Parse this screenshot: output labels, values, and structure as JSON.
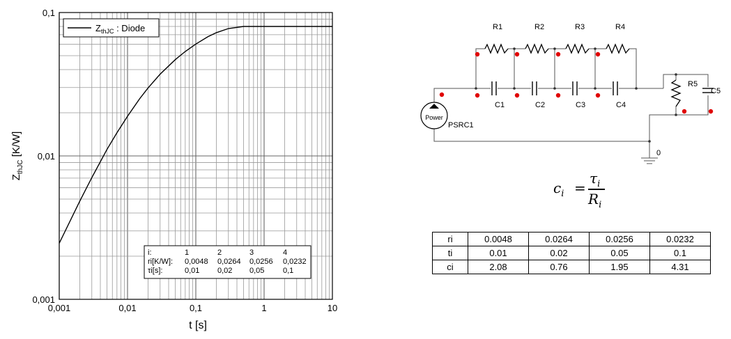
{
  "chart_data": {
    "type": "line",
    "xscale": "log",
    "yscale": "log",
    "xlim": [
      0.001,
      10
    ],
    "ylim": [
      0.001,
      0.1
    ],
    "xlabel": "t [s]",
    "ylabel": "ZthJC [K/W]",
    "ylabel_parts": {
      "main": "Z",
      "sub": "thJC",
      "unit": " [K/W]"
    },
    "x_ticks": [
      "0,001",
      "0,01",
      "0,1",
      "1",
      "10"
    ],
    "y_ticks": [
      "0,001",
      "0,01",
      "0,1"
    ],
    "grid": true,
    "legend": {
      "position": "top-left",
      "main": "Z",
      "sub": "thJC",
      "suffix": " : Diode"
    },
    "series": [
      {
        "name": "ZthJC : Diode",
        "x": [
          0.001,
          0.002,
          0.003,
          0.005,
          0.007,
          0.01,
          0.015,
          0.02,
          0.03,
          0.05,
          0.07,
          0.1,
          0.15,
          0.2,
          0.3,
          0.5,
          0.7,
          1,
          2,
          5,
          10
        ],
        "y": [
          0.00246,
          0.00484,
          0.00706,
          0.0111,
          0.0145,
          0.0189,
          0.025,
          0.0298,
          0.0372,
          0.0469,
          0.0535,
          0.0603,
          0.0678,
          0.0724,
          0.0773,
          0.08,
          0.08,
          0.08,
          0.08,
          0.08,
          0.08
        ]
      }
    ],
    "annotation": {
      "rows": [
        {
          "label": "i:",
          "values": [
            "1",
            "2",
            "3",
            "4"
          ]
        },
        {
          "label": "ri[K/W]:",
          "values": [
            "0,0048",
            "0,0264",
            "0,0256",
            "0,0232"
          ]
        },
        {
          "label": "τi[s]:",
          "values": [
            "0,01",
            "0,02",
            "0,05",
            "0,1"
          ]
        }
      ]
    }
  },
  "circuit": {
    "resistors": [
      "R1",
      "R2",
      "R3",
      "R4"
    ],
    "capacitors": [
      "C1",
      "C2",
      "C3",
      "C4"
    ],
    "r5": "R5",
    "c5": "C5",
    "source_label": "Power",
    "source_name": "PSRC1",
    "ground_label": "0"
  },
  "formula": {
    "lhs": "c",
    "lhs_sub": "i",
    "eq": "=",
    "num": "τ",
    "num_sub": "i",
    "den": "R",
    "den_sub": "i"
  },
  "table": {
    "rows": [
      {
        "label": "ri",
        "values": [
          "0.0048",
          "0.0264",
          "0.0256",
          "0.0232"
        ]
      },
      {
        "label": "ti",
        "values": [
          "0.01",
          "0.02",
          "0.05",
          "0.1"
        ]
      },
      {
        "label": "ci",
        "values": [
          "2.08",
          "0.76",
          "1.95",
          "4.31"
        ]
      }
    ]
  }
}
